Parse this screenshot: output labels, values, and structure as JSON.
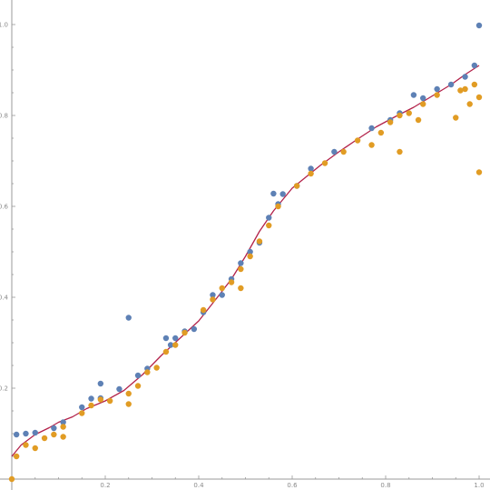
{
  "chart_data": {
    "type": "scatter",
    "title": "",
    "xlabel": "",
    "ylabel": "",
    "xlim": [
      0,
      1.03
    ],
    "ylim": [
      0,
      1.05
    ],
    "grid": false,
    "legend": "none",
    "x_ticks": [
      {
        "value": 0.2,
        "label": "0.2"
      },
      {
        "value": 0.4,
        "label": "0.4"
      },
      {
        "value": 0.6,
        "label": "0.6"
      },
      {
        "value": 0.8,
        "label": "0.8"
      },
      {
        "value": 1.0,
        "label": "1.0"
      }
    ],
    "y_ticks": [
      {
        "value": 0.2,
        "label": "0.2"
      },
      {
        "value": 0.4,
        "label": "0.4"
      },
      {
        "value": 0.6,
        "label": "0.6"
      },
      {
        "value": 0.8,
        "label": "0.8"
      },
      {
        "value": 1.0,
        "label": "1.0"
      }
    ],
    "colors": {
      "blue": "#5E81B5",
      "orange": "#E19C24",
      "curve": "#B3224A",
      "axis": "#999999"
    },
    "series": [
      {
        "type": "scatter",
        "color": "#5E81B5",
        "points": [
          [
            0.01,
            0.098
          ],
          [
            0.03,
            0.1
          ],
          [
            0.05,
            0.102
          ],
          [
            0.09,
            0.112
          ],
          [
            0.11,
            0.125
          ],
          [
            0.15,
            0.158
          ],
          [
            0.17,
            0.177
          ],
          [
            0.19,
            0.21
          ],
          [
            0.19,
            0.178
          ],
          [
            0.23,
            0.198
          ],
          [
            0.25,
            0.355
          ],
          [
            0.27,
            0.228
          ],
          [
            0.29,
            0.243
          ],
          [
            0.33,
            0.31
          ],
          [
            0.34,
            0.295
          ],
          [
            0.35,
            0.31
          ],
          [
            0.37,
            0.325
          ],
          [
            0.39,
            0.33
          ],
          [
            0.41,
            0.367
          ],
          [
            0.43,
            0.405
          ],
          [
            0.45,
            0.405
          ],
          [
            0.47,
            0.44
          ],
          [
            0.49,
            0.475
          ],
          [
            0.51,
            0.5
          ],
          [
            0.53,
            0.52
          ],
          [
            0.55,
            0.575
          ],
          [
            0.56,
            0.628
          ],
          [
            0.57,
            0.605
          ],
          [
            0.58,
            0.627
          ],
          [
            0.61,
            0.645
          ],
          [
            0.64,
            0.683
          ],
          [
            0.69,
            0.72
          ],
          [
            0.77,
            0.772
          ],
          [
            0.81,
            0.79
          ],
          [
            0.83,
            0.805
          ],
          [
            0.86,
            0.845
          ],
          [
            0.88,
            0.838
          ],
          [
            0.91,
            0.858
          ],
          [
            0.94,
            0.868
          ],
          [
            0.97,
            0.885
          ],
          [
            0.99,
            0.91
          ],
          [
            1.0,
            0.998
          ]
        ]
      },
      {
        "type": "scatter",
        "color": "#E19C24",
        "points": [
          [
            0.0,
            0.0
          ],
          [
            0.01,
            0.05
          ],
          [
            0.03,
            0.075
          ],
          [
            0.05,
            0.068
          ],
          [
            0.07,
            0.09
          ],
          [
            0.09,
            0.098
          ],
          [
            0.11,
            0.093
          ],
          [
            0.11,
            0.115
          ],
          [
            0.15,
            0.145
          ],
          [
            0.17,
            0.162
          ],
          [
            0.19,
            0.175
          ],
          [
            0.21,
            0.172
          ],
          [
            0.25,
            0.165
          ],
          [
            0.25,
            0.188
          ],
          [
            0.27,
            0.205
          ],
          [
            0.29,
            0.235
          ],
          [
            0.31,
            0.245
          ],
          [
            0.33,
            0.28
          ],
          [
            0.35,
            0.295
          ],
          [
            0.37,
            0.322
          ],
          [
            0.41,
            0.372
          ],
          [
            0.43,
            0.395
          ],
          [
            0.45,
            0.42
          ],
          [
            0.47,
            0.433
          ],
          [
            0.49,
            0.42
          ],
          [
            0.49,
            0.462
          ],
          [
            0.51,
            0.49
          ],
          [
            0.53,
            0.523
          ],
          [
            0.55,
            0.558
          ],
          [
            0.57,
            0.6
          ],
          [
            0.61,
            0.645
          ],
          [
            0.64,
            0.672
          ],
          [
            0.67,
            0.695
          ],
          [
            0.71,
            0.72
          ],
          [
            0.74,
            0.745
          ],
          [
            0.77,
            0.735
          ],
          [
            0.79,
            0.762
          ],
          [
            0.81,
            0.785
          ],
          [
            0.83,
            0.72
          ],
          [
            0.83,
            0.8
          ],
          [
            0.85,
            0.805
          ],
          [
            0.87,
            0.79
          ],
          [
            0.88,
            0.825
          ],
          [
            0.91,
            0.845
          ],
          [
            0.95,
            0.795
          ],
          [
            0.96,
            0.855
          ],
          [
            0.97,
            0.858
          ],
          [
            0.98,
            0.825
          ],
          [
            0.99,
            0.868
          ],
          [
            1.0,
            0.84
          ],
          [
            1.0,
            0.675
          ]
        ]
      },
      {
        "type": "line",
        "color": "#B3224A",
        "points": [
          [
            0.0,
            0.05
          ],
          [
            0.02,
            0.075
          ],
          [
            0.05,
            0.098
          ],
          [
            0.08,
            0.113
          ],
          [
            0.1,
            0.125
          ],
          [
            0.13,
            0.137
          ],
          [
            0.16,
            0.155
          ],
          [
            0.2,
            0.172
          ],
          [
            0.24,
            0.195
          ],
          [
            0.28,
            0.23
          ],
          [
            0.32,
            0.272
          ],
          [
            0.36,
            0.31
          ],
          [
            0.4,
            0.348
          ],
          [
            0.44,
            0.4
          ],
          [
            0.47,
            0.44
          ],
          [
            0.5,
            0.49
          ],
          [
            0.53,
            0.545
          ],
          [
            0.56,
            0.59
          ],
          [
            0.58,
            0.615
          ],
          [
            0.6,
            0.64
          ],
          [
            0.63,
            0.665
          ],
          [
            0.66,
            0.69
          ],
          [
            0.7,
            0.72
          ],
          [
            0.74,
            0.748
          ],
          [
            0.78,
            0.775
          ],
          [
            0.82,
            0.797
          ],
          [
            0.86,
            0.818
          ],
          [
            0.9,
            0.843
          ],
          [
            0.94,
            0.868
          ],
          [
            0.97,
            0.89
          ],
          [
            1.0,
            0.91
          ]
        ]
      }
    ]
  }
}
